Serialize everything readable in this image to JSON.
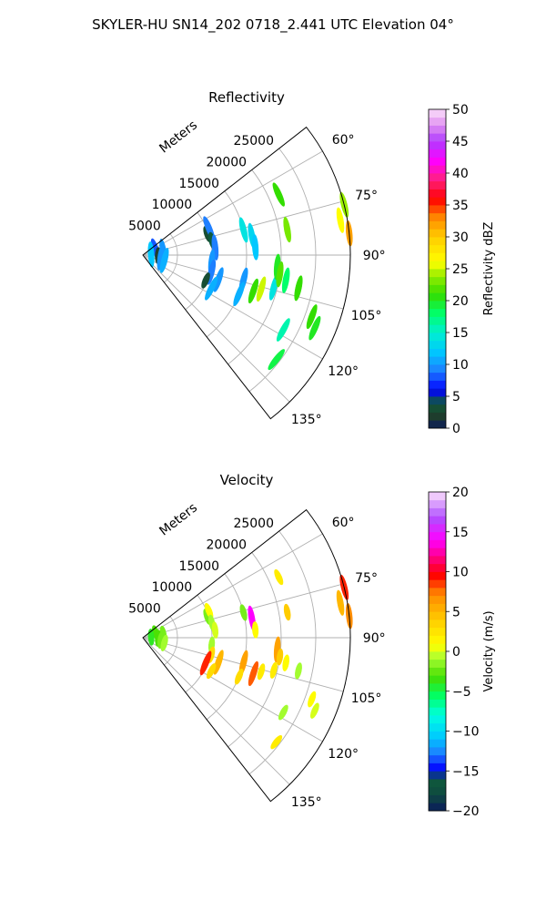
{
  "figure_title": "SKYLER-HU  SN14_202  0718_2.441 UTC Elevation 04°",
  "chart_data": [
    {
      "type": "heatmap",
      "subtype": "polar-sector-radar",
      "title": "Reflectivity",
      "range_axis_label": "Meters",
      "range_ticks": [
        5000,
        10000,
        15000,
        20000,
        25000
      ],
      "range_tick_labels": [
        "5000",
        "10000",
        "15000",
        "20000",
        "25000"
      ],
      "range_max": 30000,
      "azimuth_range_deg": [
        52,
        142
      ],
      "azimuth_ticks_deg": [
        60,
        75,
        90,
        105,
        120,
        135
      ],
      "azimuth_tick_labels": [
        "60°",
        "75°",
        "90°",
        "105°",
        "120°",
        "135°"
      ],
      "colorbar": {
        "label": "Reflectivity dBZ",
        "min": 0,
        "max": 50,
        "ticks": [
          0,
          5,
          10,
          15,
          20,
          25,
          30,
          35,
          40,
          45,
          50
        ],
        "tick_labels": [
          "0",
          "5",
          "10",
          "15",
          "20",
          "25",
          "30",
          "35",
          "40",
          "45",
          "50"
        ]
      },
      "grid": true,
      "echoes": [
        {
          "az": 72,
          "r": 2000,
          "value": 8
        },
        {
          "az": 80,
          "r": 3000,
          "value": 10
        },
        {
          "az": 86,
          "r": 1200,
          "value": 12
        },
        {
          "az": 92,
          "r": 2200,
          "value": 2
        },
        {
          "az": 98,
          "r": 2600,
          "value": 10
        },
        {
          "az": 104,
          "r": 3200,
          "value": 11
        },
        {
          "az": 72,
          "r": 9800,
          "value": 3
        },
        {
          "az": 68,
          "r": 10300,
          "value": 9
        },
        {
          "az": 78,
          "r": 10200,
          "value": 4
        },
        {
          "az": 84,
          "r": 10500,
          "value": 9
        },
        {
          "az": 96,
          "r": 10000,
          "value": 10
        },
        {
          "az": 104,
          "r": 10200,
          "value": 9
        },
        {
          "az": 112,
          "r": 9800,
          "value": 3
        },
        {
          "az": 108,
          "r": 11500,
          "value": 10
        },
        {
          "az": 116,
          "r": 11000,
          "value": 11
        },
        {
          "az": 80,
          "r": 16000,
          "value": 13
        },
        {
          "az": 86,
          "r": 16300,
          "value": 12
        },
        {
          "az": 76,
          "r": 15000,
          "value": 14
        },
        {
          "az": 104,
          "r": 15000,
          "value": 10
        },
        {
          "az": 108,
          "r": 16800,
          "value": 21
        },
        {
          "az": 106,
          "r": 17800,
          "value": 25
        },
        {
          "az": 104,
          "r": 19500,
          "value": 14
        },
        {
          "az": 112,
          "r": 15000,
          "value": 11
        },
        {
          "az": 80,
          "r": 21200,
          "value": 23
        },
        {
          "az": 66,
          "r": 21500,
          "value": 21
        },
        {
          "az": 95,
          "r": 19500,
          "value": 20
        },
        {
          "az": 98,
          "r": 20000,
          "value": 22
        },
        {
          "az": 100,
          "r": 21000,
          "value": 18
        },
        {
          "az": 80,
          "r": 29000,
          "value": 26
        },
        {
          "az": 84,
          "r": 30000,
          "value": 32
        },
        {
          "az": 76,
          "r": 30000,
          "value": 24
        },
        {
          "az": 102,
          "r": 23000,
          "value": 21
        },
        {
          "az": 110,
          "r": 26000,
          "value": 21
        },
        {
          "az": 113,
          "r": 27000,
          "value": 20
        },
        {
          "az": 118,
          "r": 23000,
          "value": 16
        },
        {
          "az": 128,
          "r": 24500,
          "value": 19
        }
      ]
    },
    {
      "type": "heatmap",
      "subtype": "polar-sector-radar",
      "title": "Velocity",
      "range_axis_label": "Meters",
      "range_ticks": [
        5000,
        10000,
        15000,
        20000,
        25000
      ],
      "range_tick_labels": [
        "5000",
        "10000",
        "15000",
        "20000",
        "25000"
      ],
      "range_max": 30000,
      "azimuth_range_deg": [
        52,
        142
      ],
      "azimuth_ticks_deg": [
        60,
        75,
        90,
        105,
        120,
        135
      ],
      "azimuth_tick_labels": [
        "60°",
        "75°",
        "90°",
        "105°",
        "120°",
        "135°"
      ],
      "colorbar": {
        "label": "Velocity (m/s)",
        "min": -20,
        "max": 20,
        "ticks": [
          -20,
          -15,
          -10,
          -5,
          0,
          5,
          10,
          15,
          20
        ],
        "tick_labels": [
          "−20",
          "−15",
          "−10",
          "−5",
          "0",
          "5",
          "10",
          "15",
          "20"
        ]
      },
      "grid": true,
      "echoes": [
        {
          "az": 72,
          "r": 2000,
          "value": -3
        },
        {
          "az": 80,
          "r": 3000,
          "value": -2
        },
        {
          "az": 86,
          "r": 1200,
          "value": -4
        },
        {
          "az": 92,
          "r": 2200,
          "value": -3
        },
        {
          "az": 98,
          "r": 2600,
          "value": -2
        },
        {
          "az": 104,
          "r": 3200,
          "value": -1
        },
        {
          "az": 72,
          "r": 9800,
          "value": -2
        },
        {
          "az": 68,
          "r": 10300,
          "value": 1
        },
        {
          "az": 78,
          "r": 10200,
          "value": -1
        },
        {
          "az": 84,
          "r": 10500,
          "value": 0
        },
        {
          "az": 96,
          "r": 10000,
          "value": -1
        },
        {
          "az": 104,
          "r": 10200,
          "value": 3
        },
        {
          "az": 112,
          "r": 9800,
          "value": 9
        },
        {
          "az": 108,
          "r": 11500,
          "value": 5
        },
        {
          "az": 116,
          "r": 11000,
          "value": 3
        },
        {
          "az": 80,
          "r": 16000,
          "value": 14
        },
        {
          "az": 86,
          "r": 16300,
          "value": 1
        },
        {
          "az": 76,
          "r": 15000,
          "value": -2
        },
        {
          "az": 104,
          "r": 15000,
          "value": 6
        },
        {
          "az": 108,
          "r": 16800,
          "value": 8
        },
        {
          "az": 106,
          "r": 17800,
          "value": 2
        },
        {
          "az": 104,
          "r": 19500,
          "value": 2
        },
        {
          "az": 112,
          "r": 15000,
          "value": 3
        },
        {
          "az": 80,
          "r": 21200,
          "value": 4
        },
        {
          "az": 66,
          "r": 21500,
          "value": 2
        },
        {
          "az": 95,
          "r": 19500,
          "value": 6
        },
        {
          "az": 98,
          "r": 20000,
          "value": 4
        },
        {
          "az": 100,
          "r": 21000,
          "value": 1
        },
        {
          "az": 80,
          "r": 29000,
          "value": 5
        },
        {
          "az": 84,
          "r": 30000,
          "value": 7
        },
        {
          "az": 76,
          "r": 30000,
          "value": 9
        },
        {
          "az": 102,
          "r": 23000,
          "value": -1
        },
        {
          "az": 110,
          "r": 26000,
          "value": 1
        },
        {
          "az": 113,
          "r": 27000,
          "value": 0
        },
        {
          "az": 118,
          "r": 23000,
          "value": -1
        },
        {
          "az": 128,
          "r": 24500,
          "value": 2
        }
      ]
    }
  ]
}
